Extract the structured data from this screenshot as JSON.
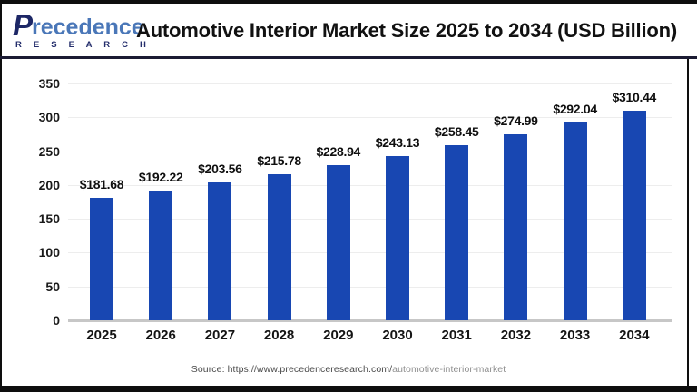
{
  "header": {
    "title": "Automotive Interior Market Size 2025 to 2034 (USD Billion)",
    "logo": {
      "brand_p": "P",
      "brand_rest": "recedence",
      "subbrand": "R E S E A R C H",
      "brand_color": "#4a77b8",
      "navy_color": "#1d2766"
    }
  },
  "chart_data": {
    "type": "bar",
    "title": "Automotive Interior Market Size 2025 to 2034 (USD Billion)",
    "unit": "USD Billion",
    "categories": [
      "2025",
      "2026",
      "2027",
      "2028",
      "2029",
      "2030",
      "2031",
      "2032",
      "2033",
      "2034"
    ],
    "values": [
      181.68,
      192.22,
      203.56,
      215.78,
      228.94,
      243.13,
      258.45,
      274.99,
      292.04,
      310.44
    ],
    "value_labels": [
      "$181.68",
      "$192.22",
      "$203.56",
      "$215.78",
      "$228.94",
      "$243.13",
      "$258.45",
      "$274.99",
      "$292.04",
      "$310.44"
    ],
    "xlabel": "",
    "ylabel": "",
    "ylim": [
      0,
      350
    ],
    "yticks": [
      0,
      50,
      100,
      150,
      200,
      250,
      300,
      350
    ],
    "grid": true,
    "legend": false,
    "bar_color": "#1847b2"
  },
  "source": {
    "prefix": "Source: https://www.precedenceresearch.com/",
    "path": "automotive-interior-market"
  }
}
